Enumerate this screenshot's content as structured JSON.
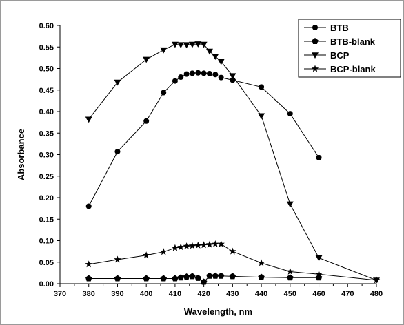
{
  "chart_data": {
    "type": "line",
    "xlabel": "Wavelength, nm",
    "ylabel": "Absorbance",
    "xlim": [
      370,
      480
    ],
    "ylim": [
      0.0,
      0.6
    ],
    "xticks": [
      370,
      380,
      390,
      400,
      410,
      420,
      430,
      440,
      450,
      460,
      470,
      480
    ],
    "yticks": [
      "0.00",
      "0.05",
      "0.10",
      "0.15",
      "0.20",
      "0.25",
      "0.30",
      "0.35",
      "0.40",
      "0.45",
      "0.50",
      "0.55",
      "0.60"
    ],
    "grid": false,
    "legend_position": "top-right",
    "series": [
      {
        "name": "BTB",
        "marker": "circle",
        "x": [
          380,
          390,
          400,
          406,
          410,
          412,
          414,
          416,
          418,
          420,
          422,
          424,
          426,
          430,
          440,
          450,
          460
        ],
        "y": [
          0.18,
          0.307,
          0.378,
          0.444,
          0.471,
          0.48,
          0.487,
          0.489,
          0.49,
          0.489,
          0.488,
          0.486,
          0.479,
          0.473,
          0.457,
          0.395,
          0.293
        ]
      },
      {
        "name": "BTB-blank",
        "marker": "pentagon",
        "x": [
          380,
          390,
          400,
          406,
          410,
          412,
          414,
          416,
          418,
          420,
          422,
          424,
          426,
          430,
          440,
          450,
          460
        ],
        "y": [
          0.012,
          0.012,
          0.012,
          0.012,
          0.012,
          0.014,
          0.016,
          0.017,
          0.013,
          0.004,
          0.018,
          0.018,
          0.018,
          0.017,
          0.015,
          0.014,
          0.014
        ]
      },
      {
        "name": "BCP",
        "marker": "triangle-down",
        "x": [
          380,
          390,
          400,
          406,
          410,
          412,
          414,
          416,
          418,
          420,
          422,
          424,
          426,
          430,
          440,
          450,
          460,
          480
        ],
        "y": [
          0.382,
          0.468,
          0.521,
          0.543,
          0.556,
          0.555,
          0.555,
          0.556,
          0.557,
          0.556,
          0.54,
          0.528,
          0.516,
          0.483,
          0.39,
          0.185,
          0.06,
          0.008
        ]
      },
      {
        "name": "BCP-blank",
        "marker": "star",
        "x": [
          380,
          390,
          400,
          406,
          410,
          412,
          414,
          416,
          418,
          420,
          422,
          424,
          426,
          430,
          440,
          450,
          460,
          480
        ],
        "y": [
          0.045,
          0.056,
          0.066,
          0.074,
          0.083,
          0.085,
          0.087,
          0.088,
          0.089,
          0.09,
          0.091,
          0.092,
          0.092,
          0.075,
          0.048,
          0.028,
          0.022,
          0.008
        ]
      }
    ]
  }
}
